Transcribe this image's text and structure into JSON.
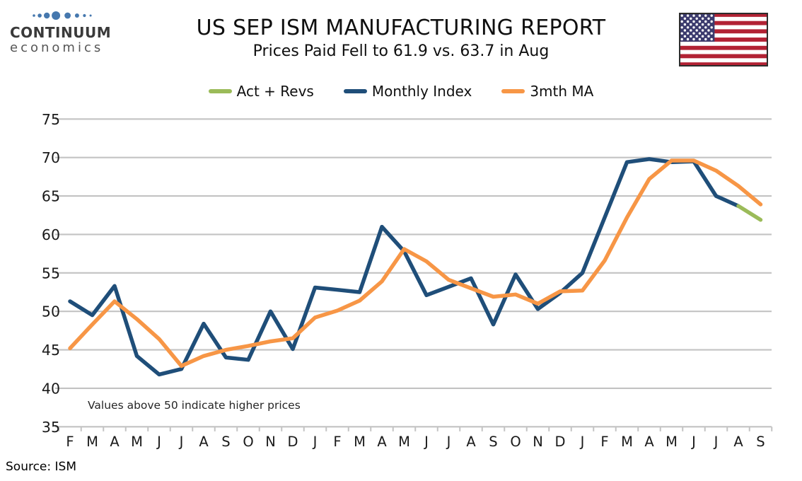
{
  "logo": {
    "line1": "CONTINUUM",
    "line2": "economics",
    "dot_color": "#4678AE"
  },
  "header": {
    "title": "US SEP ISM MANUFACTURING REPORT",
    "subtitle": "Prices Paid Fell to 61.9 vs. 63.7 in Aug"
  },
  "flag": {
    "name": "us-flag",
    "red": "#B22234",
    "blue": "#3C3B6E",
    "border": "#2d2d2d"
  },
  "annotation": "Values above 50 indicate higher prices",
  "source": "Source: ISM",
  "chart_data": {
    "type": "line",
    "title": "US SEP ISM MANUFACTURING REPORT",
    "subtitle": "Prices Paid Fell to 61.9 vs. 63.7 in Aug",
    "categories": [
      "F",
      "M",
      "A",
      "M",
      "J",
      "J",
      "A",
      "S",
      "O",
      "N",
      "D",
      "J",
      "F",
      "M",
      "A",
      "M",
      "J",
      "J",
      "A",
      "S",
      "O",
      "N",
      "D",
      "J",
      "F",
      "M",
      "A",
      "M",
      "J",
      "J",
      "A",
      "S"
    ],
    "series": [
      {
        "name": "Act + Revs",
        "color": "#9BBB59",
        "values": [
          null,
          null,
          null,
          null,
          null,
          null,
          null,
          null,
          null,
          null,
          null,
          null,
          null,
          null,
          null,
          null,
          null,
          null,
          null,
          null,
          null,
          null,
          null,
          null,
          null,
          null,
          null,
          null,
          null,
          null,
          63.7,
          61.9
        ]
      },
      {
        "name": "Monthly Index",
        "color": "#1F4E79",
        "values": [
          51.3,
          49.5,
          53.3,
          44.2,
          41.8,
          42.5,
          48.4,
          44.0,
          43.7,
          50.0,
          45.1,
          53.1,
          52.8,
          52.5,
          61.0,
          57.8,
          52.1,
          53.2,
          54.3,
          48.3,
          54.8,
          50.3,
          52.4,
          55.0,
          62.2,
          69.4,
          69.8,
          69.4,
          69.5,
          65.0,
          63.7,
          null
        ]
      },
      {
        "name": "3mth MA",
        "color": "#F79646",
        "values": [
          45.2,
          48.3,
          51.3,
          49.0,
          46.4,
          42.9,
          44.2,
          45.0,
          45.5,
          46.1,
          46.5,
          49.2,
          50.1,
          51.4,
          53.9,
          58.1,
          56.5,
          54.1,
          53.0,
          51.9,
          52.2,
          51.0,
          52.6,
          52.7,
          56.6,
          62.2,
          67.2,
          69.6,
          69.6,
          68.3,
          66.3,
          63.9
        ]
      }
    ],
    "ylabel": "",
    "xlabel": "",
    "ylim": [
      35,
      75
    ],
    "ytick_step": 5,
    "grid": true,
    "legend_position": "top",
    "annotation": "Values above 50 indicate higher prices"
  }
}
